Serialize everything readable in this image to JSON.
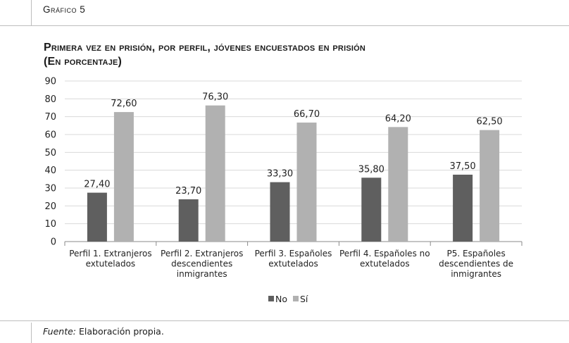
{
  "header": {
    "label": "Gráfico 5"
  },
  "chart_data": {
    "type": "bar",
    "title": "Primera vez en prisión, por perfil, jóvenes encuestados en prisión",
    "subtitle": "(En porcentaje)",
    "categories": [
      [
        "Perfil 1. Extranjeros",
        "extutelados"
      ],
      [
        "Perfil 2. Extranjeros",
        "descendientes",
        "inmigrantes"
      ],
      [
        "Perfil 3. Españoles",
        "extutelados"
      ],
      [
        "Perfil 4. Españoles no",
        "extutelados"
      ],
      [
        "P5. Españoles",
        "descendientes de",
        "inmigrantes"
      ]
    ],
    "series": [
      {
        "name": "No",
        "color": "#5f5f5f",
        "values": [
          27.4,
          23.7,
          33.3,
          35.8,
          37.5
        ],
        "labels": [
          "27,40",
          "23,70",
          "33,30",
          "35,80",
          "37,50"
        ]
      },
      {
        "name": "Sí",
        "color": "#b1b1b1",
        "values": [
          72.6,
          76.3,
          66.7,
          64.2,
          62.5
        ],
        "labels": [
          "72,60",
          "76,30",
          "66,70",
          "64,20",
          "62,50"
        ]
      }
    ],
    "ylim": [
      0,
      90
    ],
    "yticks": [
      0,
      10,
      20,
      30,
      40,
      50,
      60,
      70,
      80,
      90
    ],
    "grid": true,
    "legend_position": "bottom"
  },
  "footer": {
    "source_label": "Fuente:",
    "source_text": "Elaboración propia."
  }
}
